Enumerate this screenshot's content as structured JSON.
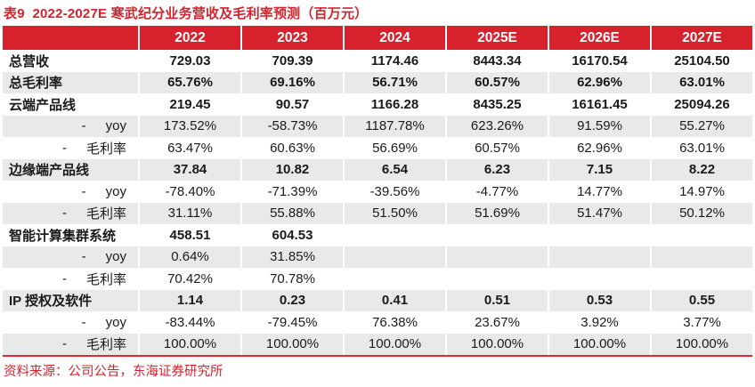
{
  "title": "表9  2022-2027E 寒武纪分业务营收及毛利率预测（百万元）",
  "source": "资料来源：公司公告，东海证券研究所",
  "colors": {
    "accent_red": "#d7212d",
    "header_bg": "#d7212d",
    "header_text": "#ffffff",
    "alt_row_bg": "#e9e9e9",
    "bottom_rule": "#e02430",
    "body_text": "#1a1a1a"
  },
  "table": {
    "sub_dash": "-",
    "columns": [
      "2022",
      "2023",
      "2024",
      "2025E",
      "2026E",
      "2027E"
    ],
    "rows": [
      {
        "label": "总营收",
        "bold": true,
        "sub": false,
        "values": [
          "729.03",
          "709.39",
          "1174.46",
          "8443.34",
          "16170.54",
          "25104.50"
        ]
      },
      {
        "label": "总毛利率",
        "bold": true,
        "sub": false,
        "values": [
          "65.76%",
          "69.16%",
          "56.71%",
          "60.57%",
          "62.96%",
          "63.01%"
        ]
      },
      {
        "label": "云端产品线",
        "bold": true,
        "sub": false,
        "values": [
          "219.45",
          "90.57",
          "1166.28",
          "8435.25",
          "16161.45",
          "25094.26"
        ]
      },
      {
        "label": "yoy",
        "bold": false,
        "sub": true,
        "values": [
          "173.52%",
          "-58.73%",
          "1187.78%",
          "623.26%",
          "91.59%",
          "55.27%"
        ]
      },
      {
        "label": "毛利率",
        "bold": false,
        "sub": true,
        "values": [
          "63.47%",
          "60.63%",
          "56.69%",
          "60.57%",
          "62.96%",
          "63.01%"
        ]
      },
      {
        "label": "边缘端产品线",
        "bold": true,
        "sub": false,
        "values": [
          "37.84",
          "10.82",
          "6.54",
          "6.23",
          "7.15",
          "8.22"
        ]
      },
      {
        "label": "yoy",
        "bold": false,
        "sub": true,
        "values": [
          "-78.40%",
          "-71.39%",
          "-39.56%",
          "-4.77%",
          "14.77%",
          "14.97%"
        ]
      },
      {
        "label": "毛利率",
        "bold": false,
        "sub": true,
        "values": [
          "31.11%",
          "55.88%",
          "51.50%",
          "51.69%",
          "51.47%",
          "50.12%"
        ]
      },
      {
        "label": "智能计算集群系统",
        "bold": true,
        "sub": false,
        "values": [
          "458.51",
          "604.53",
          "",
          "",
          "",
          ""
        ]
      },
      {
        "label": "yoy",
        "bold": false,
        "sub": true,
        "values": [
          "0.64%",
          "31.85%",
          "",
          "",
          "",
          ""
        ]
      },
      {
        "label": "毛利率",
        "bold": false,
        "sub": true,
        "values": [
          "70.42%",
          "70.78%",
          "",
          "",
          "",
          ""
        ]
      },
      {
        "label": "IP 授权及软件",
        "bold": true,
        "sub": false,
        "values": [
          "1.14",
          "0.23",
          "0.41",
          "0.51",
          "0.53",
          "0.55"
        ]
      },
      {
        "label": "yoy",
        "bold": false,
        "sub": true,
        "values": [
          "-83.44%",
          "-79.45%",
          "76.38%",
          "23.67%",
          "3.92%",
          "3.77%"
        ]
      },
      {
        "label": "毛利率",
        "bold": false,
        "sub": true,
        "values": [
          "100.00%",
          "100.00%",
          "100.00%",
          "100.00%",
          "100.00%",
          "100.00%"
        ]
      }
    ]
  }
}
